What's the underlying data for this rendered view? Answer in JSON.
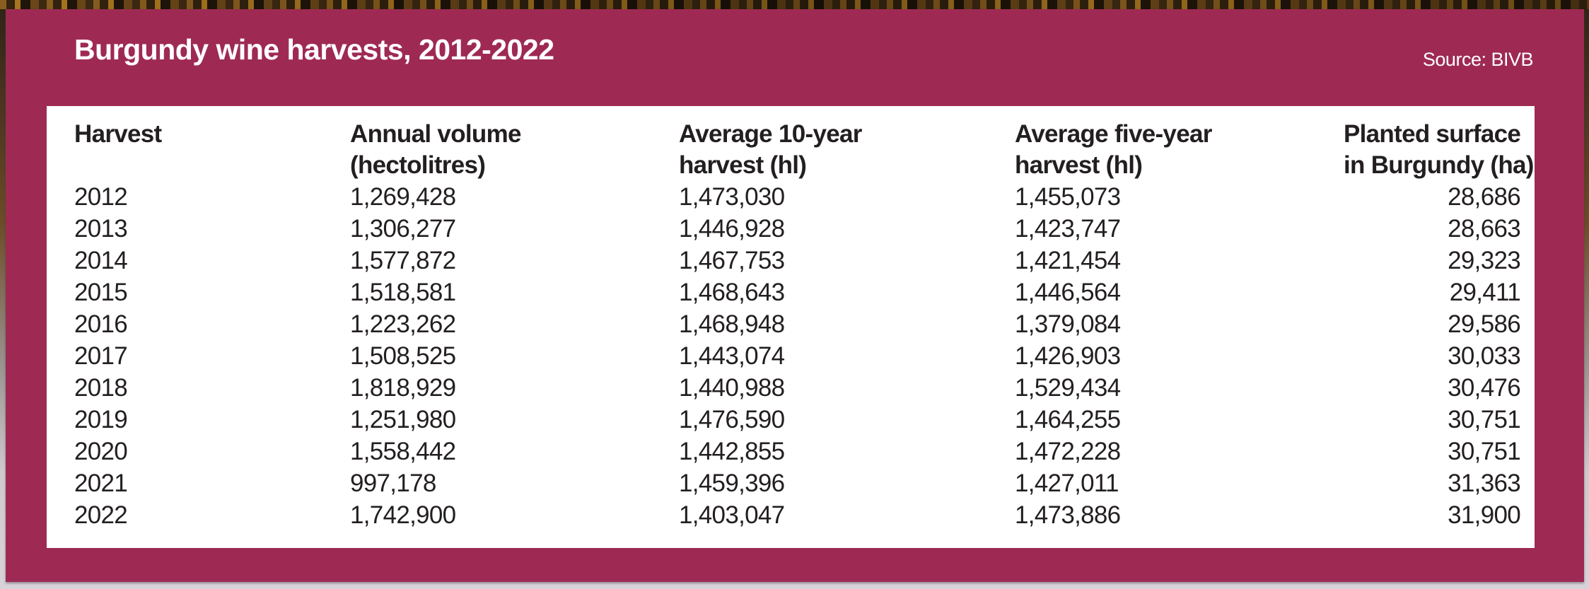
{
  "header": {
    "title": "Burgundy wine harvests, 2012-2022",
    "source": "Source: BIVB"
  },
  "table": {
    "columns": [
      {
        "line1": "Harvest",
        "line2": ""
      },
      {
        "line1": "Annual volume",
        "line2": "(hectolitres)"
      },
      {
        "line1": "Average 10-year",
        "line2": "harvest (hl)"
      },
      {
        "line1": "Average five-year",
        "line2": "harvest (hl)"
      },
      {
        "line1": "Planted surface",
        "line2": "in Burgundy (ha)"
      }
    ],
    "rows": [
      [
        "2012",
        "1,269,428",
        "1,473,030",
        "1,455,073",
        "28,686"
      ],
      [
        "2013",
        "1,306,277",
        "1,446,928",
        "1,423,747",
        "28,663"
      ],
      [
        "2014",
        "1,577,872",
        "1,467,753",
        "1,421,454",
        "29,323"
      ],
      [
        "2015",
        "1,518,581",
        "1,468,643",
        "1,446,564",
        "29,411"
      ],
      [
        "2016",
        "1,223,262",
        "1,468,948",
        "1,379,084",
        "29,586"
      ],
      [
        "2017",
        "1,508,525",
        "1,443,074",
        "1,426,903",
        "30,033"
      ],
      [
        "2018",
        "1,818,929",
        "1,440,988",
        "1,529,434",
        "30,476"
      ],
      [
        "2019",
        "1,251,980",
        "1,476,590",
        "1,464,255",
        "30,751"
      ],
      [
        "2020",
        "1,558,442",
        "1,442,855",
        "1,472,228",
        "30,751"
      ],
      [
        "2021",
        "997,178",
        "1,459,396",
        "1,427,011",
        "31,363"
      ],
      [
        "2022",
        "1,742,900",
        "1,403,047",
        "1,473,886",
        "31,900"
      ]
    ]
  },
  "chart_data": {
    "type": "table",
    "title": "Burgundy wine harvests, 2012-2022",
    "source": "Source: BIVB",
    "columns": [
      "Harvest",
      "Annual volume (hectolitres)",
      "Average 10-year harvest (hl)",
      "Average five-year harvest (hl)",
      "Planted surface in Burgundy (ha)"
    ],
    "rows": [
      [
        2012,
        1269428,
        1473030,
        1455073,
        28686
      ],
      [
        2013,
        1306277,
        1446928,
        1423747,
        28663
      ],
      [
        2014,
        1577872,
        1467753,
        1421454,
        29323
      ],
      [
        2015,
        1518581,
        1468643,
        1446564,
        29411
      ],
      [
        2016,
        1223262,
        1468948,
        1379084,
        29586
      ],
      [
        2017,
        1508525,
        1443074,
        1426903,
        30033
      ],
      [
        2018,
        1818929,
        1440988,
        1529434,
        30476
      ],
      [
        2019,
        1251980,
        1476590,
        1464255,
        30751
      ],
      [
        2020,
        1558442,
        1442855,
        1472228,
        30751
      ],
      [
        2021,
        997178,
        1459396,
        1427011,
        31363
      ],
      [
        2022,
        1742900,
        1403047,
        1473886,
        31900
      ]
    ]
  },
  "colors": {
    "burgundy_panel": "#9e2a54",
    "sheet_background": "#ffffff",
    "text_dark": "#231f20",
    "text_light": "#ffffff",
    "bottom_strip": "#d8d3d8"
  }
}
